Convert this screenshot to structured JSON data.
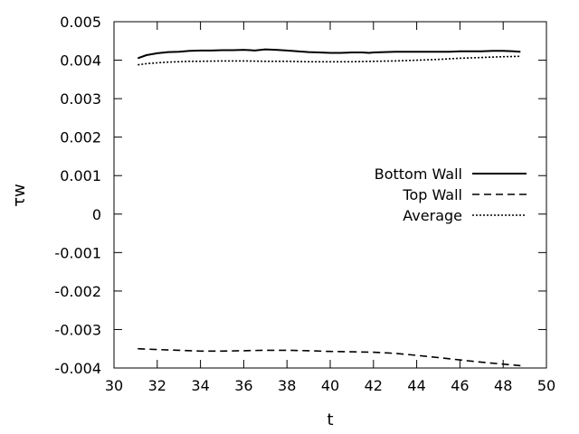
{
  "chart_data": {
    "type": "line",
    "title": "",
    "xlabel": "t",
    "ylabel": "τw",
    "xlim": [
      30,
      50
    ],
    "ylim": [
      -0.004,
      0.005
    ],
    "x_ticks": [
      "30",
      "32",
      "34",
      "36",
      "38",
      "40",
      "42",
      "44",
      "46",
      "48",
      "50"
    ],
    "y_ticks": [
      "0.005",
      "0.004",
      "0.003",
      "0.002",
      "0.001",
      "0",
      "-0.001",
      "-0.002",
      "-0.003",
      "-0.004"
    ],
    "grid": false,
    "legend_position": "right",
    "series": [
      {
        "name": "Bottom Wall",
        "style": "solid",
        "color": "#000000",
        "x": [
          31.1,
          31.5,
          32.0,
          32.5,
          33.0,
          33.5,
          34.0,
          34.5,
          35.0,
          35.5,
          36.0,
          36.3,
          36.5,
          36.8,
          37.0,
          37.5,
          38.0,
          38.5,
          39.0,
          39.5,
          40.0,
          40.5,
          41.0,
          41.5,
          41.8,
          42.0,
          42.5,
          43.0,
          43.5,
          44.0,
          44.5,
          45.0,
          45.5,
          46.0,
          46.5,
          47.0,
          47.5,
          48.0,
          48.5,
          48.8
        ],
        "y": [
          0.00405,
          0.00413,
          0.00418,
          0.00421,
          0.00422,
          0.00424,
          0.00425,
          0.00425,
          0.00426,
          0.00426,
          0.00427,
          0.00426,
          0.00425,
          0.00427,
          0.00428,
          0.00427,
          0.00425,
          0.00423,
          0.00421,
          0.0042,
          0.00419,
          0.00419,
          0.0042,
          0.0042,
          0.00419,
          0.0042,
          0.00421,
          0.00422,
          0.00422,
          0.00422,
          0.00422,
          0.00422,
          0.00422,
          0.00423,
          0.00423,
          0.00423,
          0.00424,
          0.00424,
          0.00423,
          0.00422
        ]
      },
      {
        "name": "Top Wall",
        "style": "dashed",
        "color": "#000000",
        "x": [
          31.1,
          32.0,
          33.0,
          34.0,
          35.0,
          36.0,
          37.0,
          38.0,
          39.0,
          40.0,
          41.0,
          42.0,
          43.0,
          44.0,
          45.0,
          46.0,
          47.0,
          48.0,
          48.8
        ],
        "y": [
          -0.0035,
          -0.00352,
          -0.00354,
          -0.00356,
          -0.00356,
          -0.00355,
          -0.00354,
          -0.00354,
          -0.00355,
          -0.00357,
          -0.00358,
          -0.00359,
          -0.00362,
          -0.00367,
          -0.00373,
          -0.00379,
          -0.00385,
          -0.0039,
          -0.00394
        ]
      },
      {
        "name": "Average",
        "style": "dotted",
        "color": "#000000",
        "x": [
          31.1,
          31.5,
          32.0,
          32.5,
          33.0,
          33.5,
          34.0,
          35.0,
          36.0,
          37.0,
          38.0,
          39.0,
          40.0,
          41.0,
          42.0,
          43.0,
          44.0,
          45.0,
          46.0,
          47.0,
          48.0,
          48.8
        ],
        "y": [
          0.00388,
          0.00391,
          0.00393,
          0.00395,
          0.00396,
          0.00397,
          0.00397,
          0.00398,
          0.00398,
          0.00397,
          0.00397,
          0.00396,
          0.00396,
          0.00396,
          0.00397,
          0.00398,
          0.004,
          0.00402,
          0.00405,
          0.00407,
          0.00409,
          0.0041
        ]
      }
    ]
  }
}
